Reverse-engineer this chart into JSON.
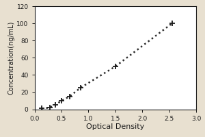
{
  "x": [
    0.13,
    0.28,
    0.38,
    0.5,
    0.65,
    0.85,
    1.5,
    2.55
  ],
  "y": [
    1,
    2,
    5,
    10,
    15,
    25,
    50,
    100
  ],
  "xlabel": "Optical Density",
  "ylabel": "Concentration(ng/mL)",
  "xlim": [
    0,
    3
  ],
  "ylim": [
    0,
    120
  ],
  "xticks": [
    0,
    0.5,
    1,
    1.5,
    2,
    2.5,
    3
  ],
  "yticks": [
    0,
    20,
    40,
    60,
    80,
    100,
    120
  ],
  "marker": "+",
  "marker_color": "#1a1a1a",
  "line_color": "#2c2c2c",
  "line_style": "dotted",
  "marker_size": 6,
  "marker_edge_width": 1.3,
  "line_width": 1.8,
  "bg_color": "#e8e0d0",
  "plot_bg_color": "#ffffff",
  "font_color": "#1a1a1a",
  "box_color": "#1a1a1a",
  "tick_label_size": 6.5,
  "xlabel_size": 8,
  "ylabel_size": 7
}
